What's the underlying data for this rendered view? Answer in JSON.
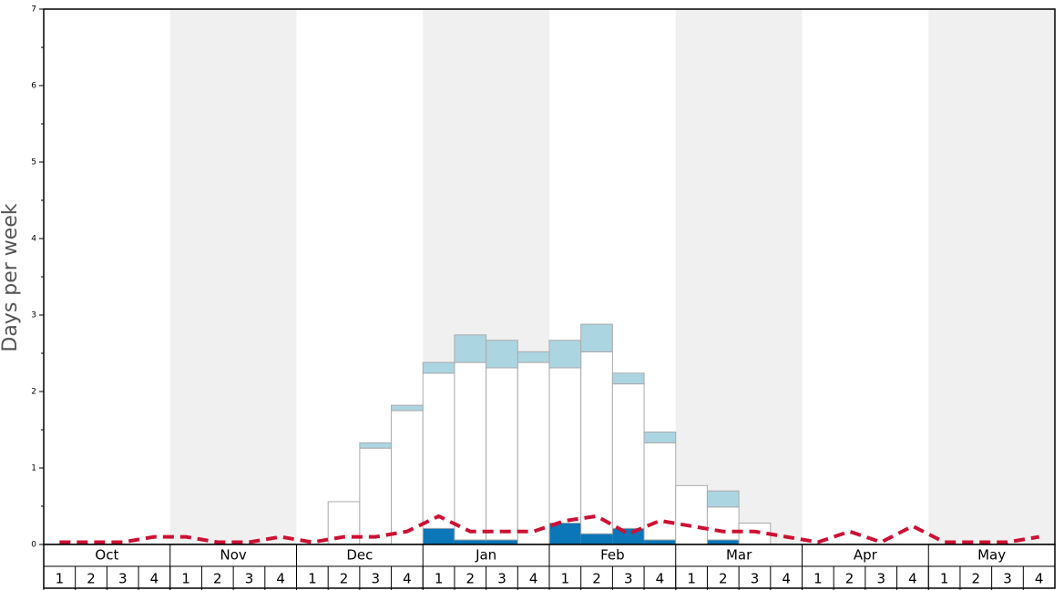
{
  "chart_data": {
    "type": "bar",
    "y_label": "Days per week",
    "months": [
      "Oct",
      "Nov",
      "Dec",
      "Jan",
      "Feb",
      "Mar",
      "Apr",
      "May"
    ],
    "shaded_months": [
      false,
      true,
      false,
      true,
      false,
      true,
      false,
      true
    ],
    "categories": [
      "1",
      "2",
      "3",
      "4",
      "1",
      "2",
      "3",
      "4",
      "1",
      "2",
      "3",
      "4",
      "1",
      "2",
      "3",
      "4",
      "1",
      "2",
      "3",
      "4",
      "1",
      "2",
      "3",
      "4",
      "1",
      "2",
      "3",
      "4",
      "1",
      "2",
      "3",
      "4"
    ],
    "series": [
      {
        "color": "#0b76b8",
        "values": [
          0,
          0,
          0,
          0,
          0,
          0,
          0,
          0,
          0,
          0,
          0,
          0,
          0.21,
          0.06,
          0.06,
          0,
          0.28,
          0.14,
          0.21,
          0.06,
          0,
          0.06,
          0,
          0,
          0,
          0,
          0,
          0,
          0,
          0,
          0,
          0
        ]
      },
      {
        "color": "#ffffff",
        "values": [
          0,
          0,
          0,
          0,
          0,
          0,
          0,
          0,
          0,
          0.56,
          1.26,
          1.75,
          2.03,
          2.32,
          2.25,
          2.38,
          2.03,
          2.38,
          1.89,
          1.27,
          0.77,
          0.43,
          0.28,
          0,
          0,
          0,
          0,
          0,
          0,
          0,
          0,
          0
        ]
      },
      {
        "color": "#acd5e2",
        "values": [
          0,
          0,
          0,
          0,
          0,
          0,
          0,
          0,
          0,
          0,
          0.07,
          0.07,
          0.14,
          0.36,
          0.36,
          0.14,
          0.36,
          0.36,
          0.14,
          0.14,
          0,
          0.21,
          0,
          0,
          0,
          0,
          0,
          0,
          0,
          0,
          0,
          0
        ]
      },
      {
        "type": "line",
        "color": "#cc1133",
        "dashed": true,
        "values": [
          0.03,
          0.03,
          0.03,
          0.1,
          0.1,
          0.03,
          0.03,
          0.1,
          0.03,
          0.1,
          0.1,
          0.17,
          0.37,
          0.17,
          0.17,
          0.17,
          0.31,
          0.37,
          0.14,
          0.31,
          0.24,
          0.17,
          0.17,
          0.1,
          0.03,
          0.17,
          0.03,
          0.24,
          0.03,
          0.03,
          0.03,
          0.1
        ]
      }
    ],
    "ylim": [
      0,
      7
    ],
    "yticks": [
      0,
      1,
      2,
      3,
      4,
      5,
      6,
      7
    ],
    "yticks_minor": [
      0.5,
      1.5,
      2.5,
      3.5,
      4.5,
      5.5,
      6.5
    ]
  }
}
